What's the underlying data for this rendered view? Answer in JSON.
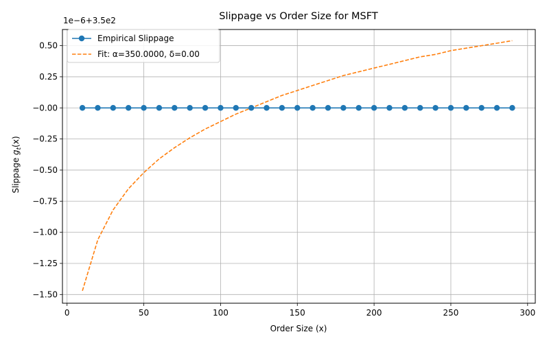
{
  "chart_data": {
    "type": "line",
    "title": "Slippage vs Order Size for MSFT",
    "xlabel": "Order Size (x)",
    "ylabel_main": "Slippage ",
    "ylabel_var": "g",
    "ylabel_sub": "t",
    "ylabel_arg": "(x)",
    "offset_text": "1e−6+3.5e2",
    "xlim": [
      -3,
      305
    ],
    "ylim": [
      -1.57,
      0.63
    ],
    "xticks": [
      0,
      50,
      100,
      150,
      200,
      250,
      300
    ],
    "xtick_labels": [
      "0",
      "50",
      "100",
      "150",
      "200",
      "250",
      "300"
    ],
    "yticks": [
      -1.5,
      -1.25,
      -1.0,
      -0.75,
      -0.5,
      -0.25,
      0.0,
      0.25,
      0.5
    ],
    "ytick_labels": [
      "−1.50",
      "−1.25",
      "−1.00",
      "−0.75",
      "−0.50",
      "−0.25",
      "−0.00",
      "0.25",
      "0.50"
    ],
    "grid": true,
    "legend_position": "top-left",
    "series": [
      {
        "name": "Empirical Slippage",
        "color": "#1f77b4",
        "style": "solid-markers",
        "x": [
          10,
          20,
          30,
          40,
          50,
          60,
          70,
          80,
          90,
          100,
          110,
          120,
          130,
          140,
          150,
          160,
          170,
          180,
          190,
          200,
          210,
          220,
          230,
          240,
          250,
          260,
          270,
          280,
          290
        ],
        "y": [
          0,
          0,
          0,
          0,
          0,
          0,
          0,
          0,
          0,
          0,
          0,
          0,
          0,
          0,
          0,
          0,
          0,
          0,
          0,
          0,
          0,
          0,
          0,
          0,
          0,
          0,
          0,
          0,
          0
        ]
      },
      {
        "name": "Fit: α=350.0000, δ=0.00",
        "color": "#ff7f0e",
        "style": "dashed",
        "x": [
          10,
          20,
          30,
          40,
          50,
          60,
          70,
          80,
          90,
          100,
          110,
          120,
          130,
          140,
          150,
          160,
          170,
          180,
          190,
          200,
          210,
          220,
          230,
          240,
          250,
          260,
          270,
          280,
          290
        ],
        "y": [
          -1.47,
          -1.06,
          -0.82,
          -0.65,
          -0.52,
          -0.41,
          -0.32,
          -0.24,
          -0.17,
          -0.11,
          -0.05,
          0.0,
          0.05,
          0.1,
          0.14,
          0.18,
          0.22,
          0.26,
          0.29,
          0.32,
          0.35,
          0.38,
          0.41,
          0.43,
          0.46,
          0.48,
          0.5,
          0.52,
          0.54
        ]
      }
    ]
  }
}
